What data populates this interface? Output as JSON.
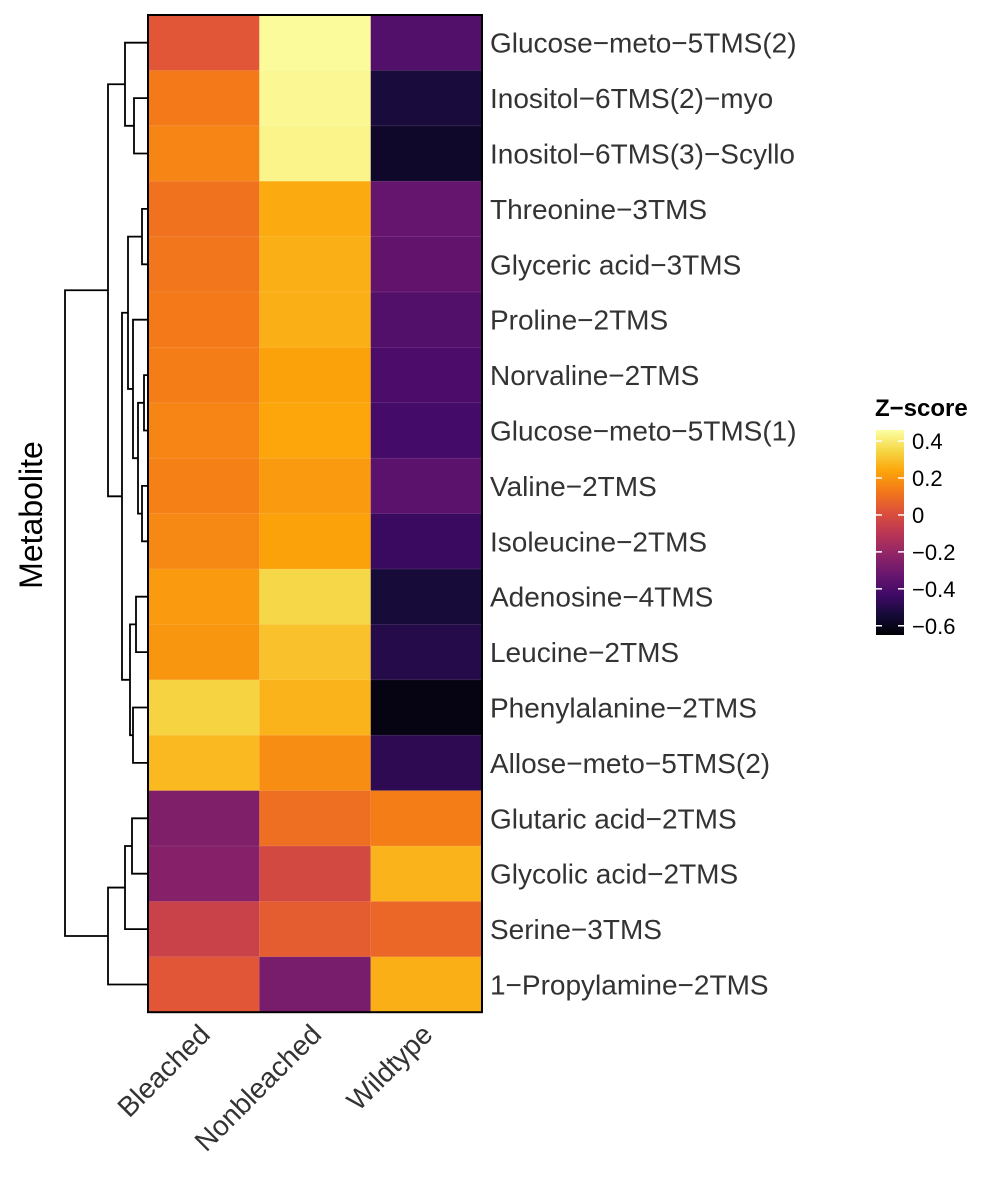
{
  "chart_data": {
    "type": "heatmap",
    "ylabel": "Metabolite",
    "columns": [
      "Bleached",
      "Nonbleached",
      "Wildtype"
    ],
    "rows": [
      "Glucose−meto−5TMS(2)",
      "Inositol−6TMS(2)−myo",
      "Inositol−6TMS(3)−Scyllo",
      "Threonine−3TMS",
      "Glyceric acid−3TMS",
      "Proline−2TMS",
      "Norvaline−2TMS",
      "Glucose−meto−5TMS(1)",
      "Valine−2TMS",
      "Isoleucine−2TMS",
      "Adenosine−4TMS",
      "Leucine−2TMS",
      "Phenylalanine−2TMS",
      "Allose−meto−5TMS(2)",
      "Glutaric acid−2TMS",
      "Glycolic acid−2TMS",
      "Serine−3TMS",
      "1−Propylamine−2TMS"
    ],
    "values": [
      [
        0.03,
        0.45,
        -0.38
      ],
      [
        0.13,
        0.44,
        -0.53
      ],
      [
        0.16,
        0.43,
        -0.57
      ],
      [
        0.11,
        0.25,
        -0.33
      ],
      [
        0.12,
        0.26,
        -0.34
      ],
      [
        0.13,
        0.26,
        -0.38
      ],
      [
        0.14,
        0.23,
        -0.4
      ],
      [
        0.16,
        0.24,
        -0.42
      ],
      [
        0.15,
        0.21,
        -0.36
      ],
      [
        0.17,
        0.23,
        -0.45
      ],
      [
        0.21,
        0.35,
        -0.54
      ],
      [
        0.2,
        0.3,
        -0.5
      ],
      [
        0.34,
        0.27,
        -0.62
      ],
      [
        0.28,
        0.18,
        -0.48
      ],
      [
        -0.26,
        0.1,
        0.14
      ],
      [
        -0.24,
        -0.02,
        0.27
      ],
      [
        -0.05,
        0.05,
        0.08
      ],
      [
        0.03,
        -0.28,
        0.26
      ]
    ],
    "legend": {
      "title": "Z−score",
      "ticks": [
        {
          "value": 0.4,
          "label": "0.4"
        },
        {
          "value": 0.2,
          "label": "0.2"
        },
        {
          "value": 0.0,
          "label": "0"
        },
        {
          "value": -0.2,
          "label": "−0.2"
        },
        {
          "value": -0.4,
          "label": "−0.4"
        },
        {
          "value": -0.6,
          "label": "−0.6"
        }
      ],
      "range": [
        -0.65,
        0.46
      ]
    },
    "colormap": "inferno",
    "dendrogram": "rows",
    "grid": false
  }
}
